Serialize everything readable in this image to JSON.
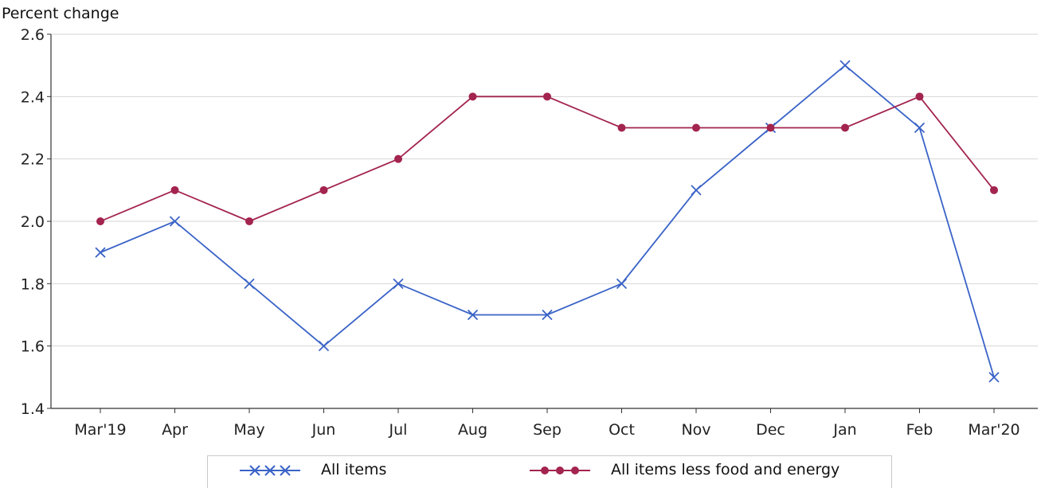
{
  "chart_data": {
    "type": "line",
    "ylabel": "Percent change",
    "categories": [
      "Mar'19",
      "Apr",
      "May",
      "Jun",
      "Jul",
      "Aug",
      "Sep",
      "Oct",
      "Nov",
      "Dec",
      "Jan",
      "Feb",
      "Mar'20"
    ],
    "ylim": [
      1.4,
      2.6
    ],
    "yticks": [
      "1.4",
      "1.6",
      "1.8",
      "2.0",
      "2.2",
      "2.4",
      "2.6"
    ],
    "grid": true,
    "legend_position": "bottom",
    "series": [
      {
        "name": "All items",
        "color": "#3a63c7",
        "marker": "x",
        "values": [
          1.9,
          2.0,
          1.8,
          1.6,
          1.8,
          1.7,
          1.7,
          1.8,
          2.1,
          2.3,
          2.5,
          2.3,
          1.5
        ]
      },
      {
        "name": "All items less food and energy",
        "color": "#a3244e",
        "marker": "circle",
        "values": [
          2.0,
          2.1,
          2.0,
          2.1,
          2.2,
          2.4,
          2.4,
          2.3,
          2.3,
          2.3,
          2.3,
          2.4,
          2.1
        ]
      }
    ]
  }
}
